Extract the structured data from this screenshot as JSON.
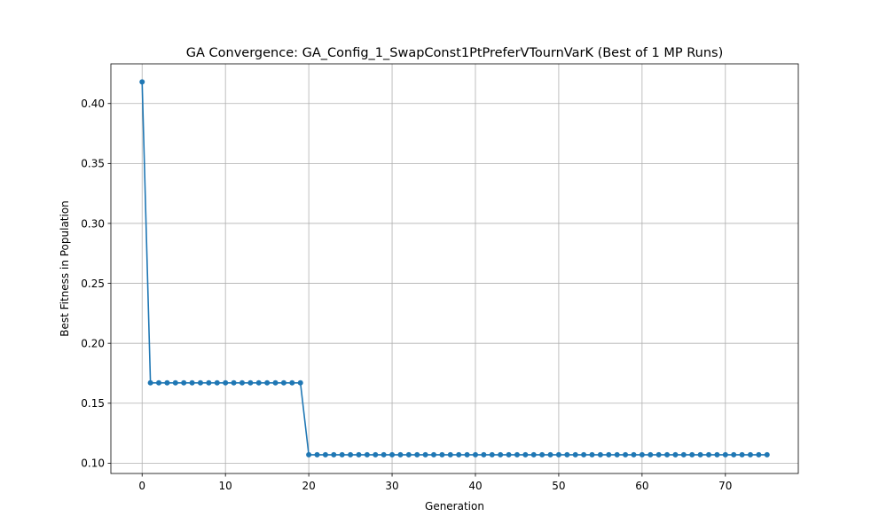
{
  "chart_data": {
    "type": "line",
    "title": "GA Convergence: GA_Config_1_SwapConst1PtPreferVTournVarK (Best of 1 MP Runs)",
    "xlabel": "Generation",
    "ylabel": "Best Fitness in Population",
    "xlim": [
      -3.75,
      78.75
    ],
    "ylim": [
      0.0914,
      0.4331
    ],
    "xticks": [
      0,
      10,
      20,
      30,
      40,
      50,
      60,
      70
    ],
    "yticks": [
      0.1,
      0.15,
      0.2,
      0.25,
      0.3,
      0.35,
      0.4
    ],
    "ytick_labels": [
      "0.10",
      "0.15",
      "0.20",
      "0.25",
      "0.30",
      "0.35",
      "0.40"
    ],
    "grid": true,
    "marker": "circle",
    "color": "#1f77b4",
    "series": [
      {
        "segments": [
          {
            "from": 0,
            "to": 0,
            "value": 0.418
          },
          {
            "from": 1,
            "to": 19,
            "value": 0.167
          },
          {
            "from": 20,
            "to": 75,
            "value": 0.107
          }
        ]
      }
    ]
  }
}
